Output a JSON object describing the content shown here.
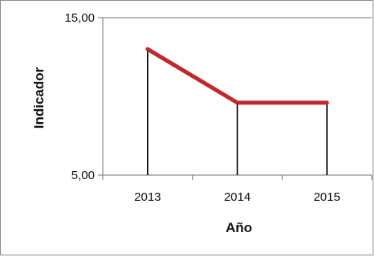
{
  "chart_data": {
    "type": "line",
    "categories": [
      "2013",
      "2014",
      "2015"
    ],
    "series": [
      {
        "values": [
          13.0,
          9.6,
          9.6
        ]
      }
    ],
    "xlabel": "Año",
    "ylabel": "Indicador",
    "ylim": [
      5,
      15
    ],
    "y_ticks": [
      "5,00",
      "15,00"
    ],
    "drop_lines": true,
    "grid": false,
    "line_color": "#c0282d",
    "drop_line_color": "#000000"
  }
}
